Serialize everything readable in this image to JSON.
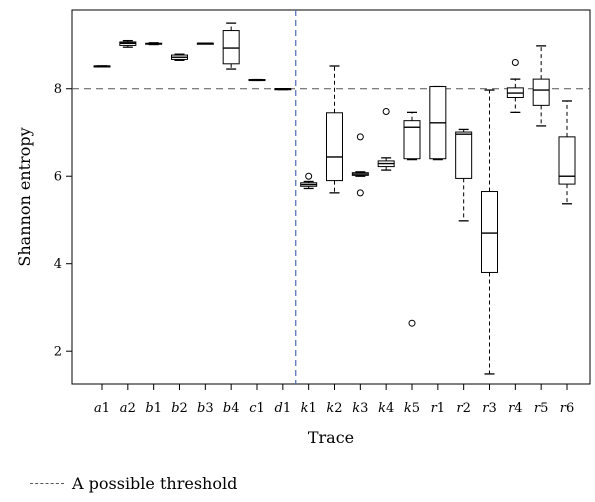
{
  "chart_data": {
    "type": "boxplot",
    "xlabel": "Trace",
    "ylabel": "Shannon entropy",
    "yticks": [
      2,
      4,
      6,
      8
    ],
    "ylim": [
      1.25,
      9.8
    ],
    "grid": false,
    "threshold": {
      "value": 8,
      "label": "A possible threshold"
    },
    "separator_after": "d1",
    "separator_color": "#4a6ab5",
    "categories": [
      "a1",
      "a2",
      "b1",
      "b2",
      "b3",
      "b4",
      "c1",
      "d1",
      "k1",
      "k2",
      "k3",
      "k4",
      "k5",
      "r1",
      "r2",
      "r3",
      "r4",
      "r5",
      "r6"
    ],
    "boxes": [
      {
        "label": "a1",
        "min": 8.52,
        "q1": 8.52,
        "median": 8.52,
        "q3": 8.52,
        "max": 8.52,
        "outliers": []
      },
      {
        "label": "a2",
        "min": 8.95,
        "q1": 8.99,
        "median": 9.04,
        "q3": 9.07,
        "max": 9.1,
        "outliers": []
      },
      {
        "label": "b1",
        "min": 9.01,
        "q1": 9.02,
        "median": 9.03,
        "q3": 9.04,
        "max": 9.05,
        "outliers": []
      },
      {
        "label": "b2",
        "min": 8.65,
        "q1": 8.67,
        "median": 8.72,
        "q3": 8.77,
        "max": 8.79,
        "outliers": []
      },
      {
        "label": "b3",
        "min": 9.04,
        "q1": 9.04,
        "median": 9.04,
        "q3": 9.04,
        "max": 9.04,
        "outliers": []
      },
      {
        "label": "b4",
        "min": 8.45,
        "q1": 8.57,
        "median": 8.93,
        "q3": 9.33,
        "max": 9.5,
        "outliers": []
      },
      {
        "label": "c1",
        "min": 8.19,
        "q1": 8.19,
        "median": 8.2,
        "q3": 8.21,
        "max": 8.21,
        "outliers": []
      },
      {
        "label": "d1",
        "min": 7.98,
        "q1": 7.98,
        "median": 8.0,
        "q3": 8.0,
        "max": 8.0,
        "outliers": []
      },
      {
        "label": "k1",
        "min": 5.72,
        "q1": 5.77,
        "median": 5.81,
        "q3": 5.85,
        "max": 5.88,
        "outliers": [
          6.0
        ]
      },
      {
        "label": "k2",
        "min": 5.62,
        "q1": 5.9,
        "median": 6.44,
        "q3": 7.45,
        "max": 8.52,
        "outliers": []
      },
      {
        "label": "k3",
        "min": 6.0,
        "q1": 6.02,
        "median": 6.05,
        "q3": 6.08,
        "max": 6.1,
        "outliers": [
          6.9,
          5.62
        ]
      },
      {
        "label": "k4",
        "min": 6.14,
        "q1": 6.22,
        "median": 6.29,
        "q3": 6.35,
        "max": 6.42,
        "outliers": [
          7.48
        ]
      },
      {
        "label": "k5",
        "min": 6.38,
        "q1": 6.4,
        "median": 7.12,
        "q3": 7.27,
        "max": 7.46,
        "outliers": [
          2.64
        ]
      },
      {
        "label": "r1",
        "min": 6.38,
        "q1": 6.4,
        "median": 7.22,
        "q3": 8.05,
        "max": 8.05,
        "outliers": []
      },
      {
        "label": "r2",
        "min": 4.98,
        "q1": 5.95,
        "median": 6.96,
        "q3": 7.01,
        "max": 7.07,
        "outliers": []
      },
      {
        "label": "r3",
        "min": 1.48,
        "q1": 3.8,
        "median": 4.7,
        "q3": 5.65,
        "max": 7.97,
        "outliers": []
      },
      {
        "label": "r4",
        "min": 7.46,
        "q1": 7.8,
        "median": 7.9,
        "q3": 8.02,
        "max": 8.22,
        "outliers": [
          8.6
        ]
      },
      {
        "label": "r5",
        "min": 7.15,
        "q1": 7.62,
        "median": 7.97,
        "q3": 8.22,
        "max": 8.98,
        "outliers": []
      },
      {
        "label": "r6",
        "min": 5.37,
        "q1": 5.82,
        "median": 6.0,
        "q3": 6.9,
        "max": 7.72,
        "outliers": []
      }
    ]
  }
}
